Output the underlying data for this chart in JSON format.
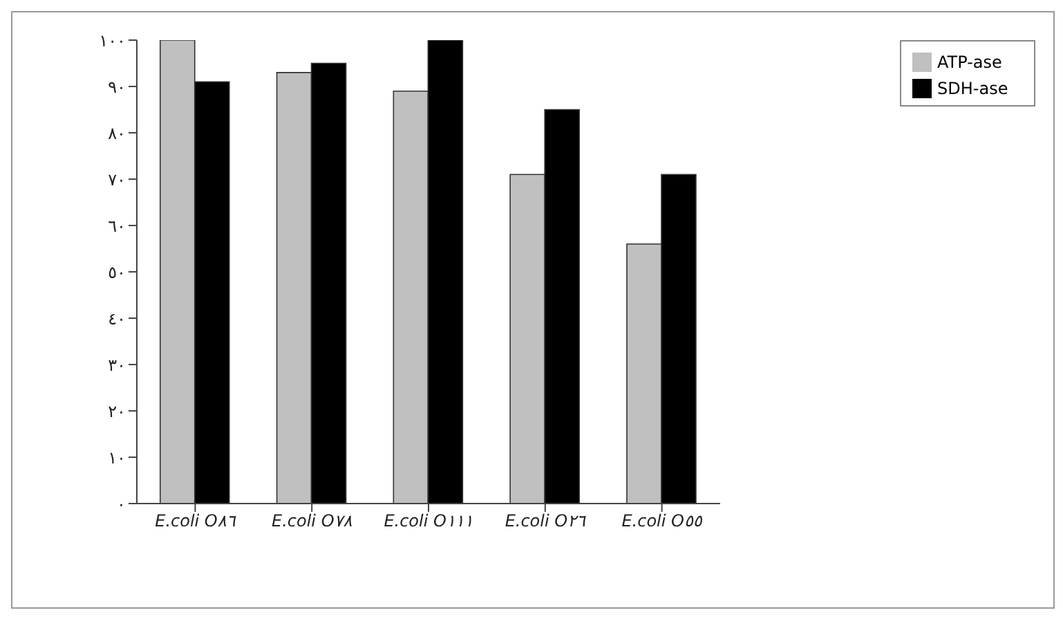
{
  "chart_data": {
    "type": "bar",
    "categories": [
      "E.coli O٨٦",
      "E.coli O٧٨",
      "E.coli O١١١",
      "E.coli O٢٦",
      "E.coli O٥٥"
    ],
    "series": [
      {
        "name": "ATP-ase",
        "color": "#c0c0c0",
        "values": [
          100,
          93,
          89,
          71,
          56
        ]
      },
      {
        "name": "SDH-ase",
        "color": "#000000",
        "values": [
          91,
          95,
          100,
          85,
          71
        ]
      }
    ],
    "ylim": [
      0,
      100
    ],
    "yticks": [
      {
        "value": 0,
        "label": "٠"
      },
      {
        "value": 10,
        "label": "١٠"
      },
      {
        "value": 20,
        "label": "٢٠"
      },
      {
        "value": 30,
        "label": "٣٠"
      },
      {
        "value": 40,
        "label": "٤٠"
      },
      {
        "value": 50,
        "label": "٥٠"
      },
      {
        "value": 60,
        "label": "٦٠"
      },
      {
        "value": 70,
        "label": "٧٠"
      },
      {
        "value": 80,
        "label": "٨٠"
      },
      {
        "value": 90,
        "label": "٩٠"
      },
      {
        "value": 100,
        "label": "١٠٠"
      }
    ],
    "grid": false,
    "legend": "top right"
  }
}
